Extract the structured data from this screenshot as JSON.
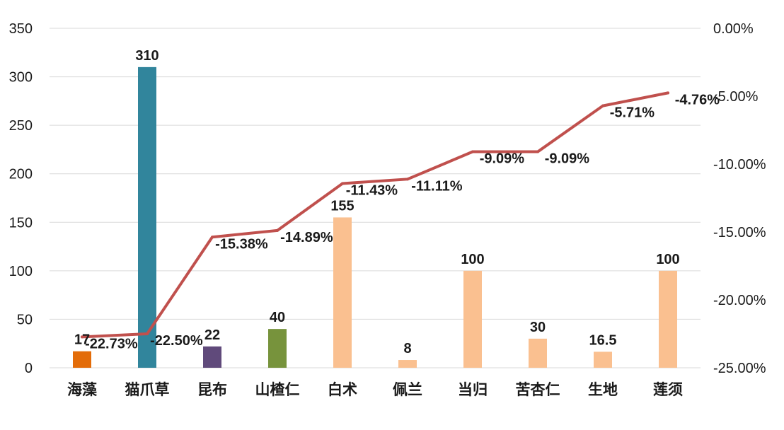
{
  "chart_data": {
    "type": "bar+line",
    "categories": [
      "海藻",
      "猫爪草",
      "昆布",
      "山楂仁",
      "白术",
      "佩兰",
      "当归",
      "苦杏仁",
      "生地",
      "莲须"
    ],
    "series": [
      {
        "axis": "left",
        "type": "bar",
        "values": [
          17,
          310,
          22,
          40,
          155,
          8,
          100,
          30,
          16.5,
          100
        ],
        "value_labels": [
          "17",
          "310",
          "22",
          "40",
          "155",
          "8",
          "100",
          "30",
          "16.5",
          "100"
        ],
        "colors": [
          "#E36C09",
          "#31859C",
          "#604A7B",
          "#77933C",
          "#FAC090",
          "#FAC090",
          "#FAC090",
          "#FAC090",
          "#FAC090",
          "#FAC090"
        ]
      },
      {
        "axis": "right",
        "type": "line",
        "values": [
          -22.73,
          -22.5,
          -15.38,
          -14.89,
          -11.43,
          -11.11,
          -9.09,
          -9.09,
          -5.71,
          -4.76
        ],
        "value_labels": [
          "-22.73%",
          "-22.50%",
          "-15.38%",
          "-14.89%",
          "-11.43%",
          "-11.11%",
          "-9.09%",
          "-9.09%",
          "-5.71%",
          "-4.76%"
        ],
        "color": "#C0504D"
      }
    ],
    "y_left": {
      "lim": [
        0,
        350
      ],
      "ticks": [
        0,
        50,
        100,
        150,
        200,
        250,
        300,
        350
      ],
      "tick_labels": [
        "0",
        "50",
        "100",
        "150",
        "200",
        "250",
        "300",
        "350"
      ]
    },
    "y_right": {
      "lim": [
        -25,
        0
      ],
      "ticks": [
        -25,
        -20,
        -15,
        -10,
        -5,
        0
      ],
      "tick_labels": [
        "-25.00%",
        "-20.00%",
        "-15.00%",
        "-10.00%",
        "-5.00%",
        "0.00%"
      ]
    },
    "grid": true,
    "legend": "none",
    "gridline_color": "#D9D9D9"
  }
}
